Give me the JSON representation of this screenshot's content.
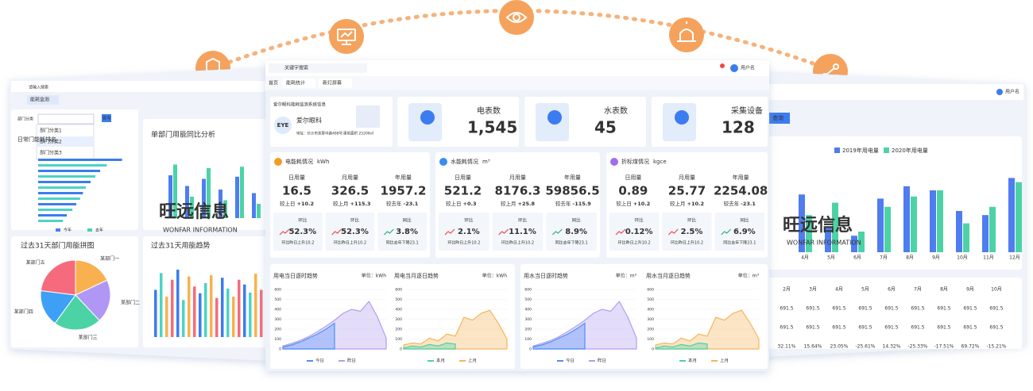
{
  "watermark": {
    "title": "旺远信息",
    "subtitle": "WONFAR INFORMATION"
  },
  "left_panel": {
    "search": "请输入搜索",
    "tab": "能耗监测",
    "button": "查询",
    "filter_label": "部门分类",
    "filters": [
      "部门分类1",
      "部门分类2",
      "部门分类3"
    ],
    "rank_title": "日常门能耗排名",
    "rank_values": [
      88,
      72,
      65,
      60,
      55,
      50,
      47,
      44,
      40,
      36,
      30,
      26
    ],
    "compare_title": "单部门用能同比分析",
    "compare_series": [
      {
        "name": "今年",
        "color": "#4f7cf0",
        "values": [
          60,
          45,
          55,
          40,
          58,
          35
        ]
      },
      {
        "name": "去年",
        "color": "#4cd3a5",
        "values": [
          75,
          30,
          70,
          25,
          72,
          20
        ]
      }
    ],
    "pie_title": "过去31天部门用能拼图",
    "pie": {
      "labels": [
        "某部门一",
        "某部门二",
        "某部门三",
        "某部门四",
        "某部门五"
      ],
      "values": [
        18,
        20,
        22,
        17,
        23
      ],
      "colors": [
        "#f9b14f",
        "#b197f5",
        "#4cd3a5",
        "#3ea0f5",
        "#f56b7d"
      ]
    },
    "trend_title": "过去31天用能趋势",
    "trend_values": [
      70,
      95,
      60,
      85,
      100,
      55,
      90,
      75,
      65,
      80,
      92,
      58,
      88,
      72,
      60,
      85,
      78,
      66,
      94,
      70
    ]
  },
  "main": {
    "search": "关键字搜索",
    "user": "用户名",
    "tabs": [
      "首页",
      "能耗统计",
      "新灯屏幕"
    ],
    "info": {
      "heading": "爱尔眼科能耗监测系统信息",
      "logo": "EYE",
      "name": "爱尔眼科",
      "address": "地址：长沙市芙蓉中路488号",
      "area": "建筑面积 25208㎡"
    },
    "counters": [
      {
        "label": "电表数",
        "value": "1,545"
      },
      {
        "label": "水表数",
        "value": "45"
      },
      {
        "label": "采集设备",
        "value": "128"
      }
    ],
    "energy": [
      {
        "title": "电能耗情况",
        "unit": "kWh",
        "icon_color": "#f39c23",
        "stats": [
          {
            "label": "日用量",
            "value": "16.5",
            "compare": "较上日",
            "change": "+10.2",
            "color": "#f04848"
          },
          {
            "label": "月用量",
            "value": "326.5",
            "compare": "较上月",
            "change": "+115.3",
            "color": "#f04848"
          },
          {
            "label": "年用量",
            "value": "1957.2",
            "compare": "较去年",
            "change": "-23.1",
            "color": "#28b07a"
          }
        ],
        "ratios": [
          {
            "label": "环比",
            "value": "52.3%",
            "desc": "环比昨日上升10.2",
            "color": "#f04848"
          },
          {
            "label": "环比",
            "value": "52.3%",
            "desc": "环比昨日上升10.2",
            "color": "#f04848"
          },
          {
            "label": "同比",
            "value": "3.8%",
            "desc": "同比去年下降23.1",
            "color": "#28b07a"
          }
        ]
      },
      {
        "title": "水能耗情况",
        "unit": "m³",
        "icon_color": "#3b8cf0",
        "stats": [
          {
            "label": "日用量",
            "value": "521.2",
            "compare": "较上日",
            "change": "+0.3",
            "color": "#f04848"
          },
          {
            "label": "月用量",
            "value": "8176.3",
            "compare": "较上月",
            "change": "+25.8",
            "color": "#f04848"
          },
          {
            "label": "年用量",
            "value": "59856.5",
            "compare": "较去年",
            "change": "-115.9",
            "color": "#28b07a"
          }
        ],
        "ratios": [
          {
            "label": "环比",
            "value": "2.1%",
            "desc": "环比昨日上升10.2",
            "color": "#f04848"
          },
          {
            "label": "环比",
            "value": "11.1%",
            "desc": "环比昨日上升10.2",
            "color": "#f04848"
          },
          {
            "label": "同比",
            "value": "8.9%",
            "desc": "同比去年下降23.1",
            "color": "#28b07a"
          }
        ]
      },
      {
        "title": "折标煤情况",
        "unit": "kgce",
        "icon_color": "#a26cf0",
        "stats": [
          {
            "label": "日用量",
            "value": "0.89",
            "compare": "较上日",
            "change": "+10.2",
            "color": "#f04848"
          },
          {
            "label": "月用量",
            "value": "25.77",
            "compare": "较上月",
            "change": "+10.2",
            "color": "#f04848"
          },
          {
            "label": "年用量",
            "value": "2254.08",
            "compare": "较去年",
            "change": "-23.1",
            "color": "#28b07a"
          }
        ],
        "ratios": [
          {
            "label": "环比",
            "value": "0.12%",
            "desc": "环比昨日上升10.2",
            "color": "#f04848"
          },
          {
            "label": "环比",
            "value": "2.5%",
            "desc": "环比昨日上升10.2",
            "color": "#f04848"
          },
          {
            "label": "同比",
            "value": "6.9%",
            "desc": "同比去年下降23.1",
            "color": "#28b07a"
          }
        ]
      }
    ],
    "trends": [
      {
        "title": "用电当日逐时趋势",
        "unit": "单位：kWh",
        "ylim": [
          0,
          600
        ],
        "yticks": [
          0,
          100,
          200,
          300,
          400,
          500,
          600
        ],
        "series": [
          {
            "name": "今日",
            "color": "#4f8ff5",
            "values": [
              20,
              40,
              70,
              110,
              150,
              200,
              260,
              null,
              null,
              null,
              null,
              null,
              null
            ]
          },
          {
            "name": "昨日",
            "color": "#b39df0",
            "values": [
              30,
              55,
              85,
              125,
              175,
              230,
              290,
              360,
              400,
              380,
              480,
              320,
              110
            ]
          }
        ]
      },
      {
        "title": "用电当月逐日趋势",
        "unit": "单位：kWh",
        "ylim": [
          0,
          600
        ],
        "yticks": [
          0,
          100,
          200,
          300,
          400,
          500,
          600
        ],
        "series": [
          {
            "name": "本月",
            "color": "#4cd3a5",
            "values": [
              10,
              30,
              20,
              45,
              30,
              60,
              50,
              null,
              null,
              null,
              null,
              null,
              null
            ]
          },
          {
            "name": "上月",
            "color": "#f6b55a",
            "values": [
              40,
              60,
              50,
              110,
              80,
              150,
              130,
              320,
              290,
              360,
              390,
              260,
              100
            ]
          }
        ]
      },
      {
        "title": "用水当日逐时趋势",
        "unit": "单位：m³",
        "ylim": [
          0,
          600
        ],
        "yticks": [
          0,
          100,
          200,
          300,
          400,
          500,
          600
        ],
        "series": [
          {
            "name": "今日",
            "color": "#4f8ff5",
            "values": [
              20,
              40,
              70,
              110,
              150,
              200,
              260,
              null,
              null,
              null,
              null,
              null,
              null
            ]
          },
          {
            "name": "昨日",
            "color": "#b39df0",
            "values": [
              30,
              55,
              85,
              125,
              175,
              230,
              290,
              360,
              400,
              380,
              480,
              320,
              110
            ]
          }
        ]
      },
      {
        "title": "用水当月逐日趋势",
        "unit": "单位：m³",
        "ylim": [
          0,
          600
        ],
        "yticks": [
          0,
          100,
          200,
          300,
          400,
          500,
          600
        ],
        "series": [
          {
            "name": "本月",
            "color": "#4cd3a5",
            "values": [
              10,
              30,
              20,
              45,
              30,
              60,
              50,
              null,
              null,
              null,
              null,
              null,
              null
            ]
          },
          {
            "name": "上月",
            "color": "#f6b55a",
            "values": [
              40,
              60,
              50,
              110,
              80,
              150,
              130,
              320,
              290,
              360,
              390,
              260,
              100
            ]
          }
        ]
      }
    ]
  },
  "right_panel": {
    "user": "用户名",
    "button": "查询",
    "months": [
      "4月",
      "5月",
      "6月",
      "7月",
      "8月",
      "9月",
      "10月",
      "11月",
      "12月"
    ],
    "series": [
      {
        "name": "2019年用电量",
        "color": "#4f7cf0",
        "values": [
          28,
          12,
          8,
          26,
          32,
          30,
          20,
          18,
          36
        ]
      },
      {
        "name": "2020年用电量",
        "color": "#4cd3a5",
        "values": [
          18,
          24,
          10,
          22,
          27,
          30,
          14,
          22,
          34
        ]
      }
    ],
    "table": [
      [
        "2月",
        "3月",
        "4月",
        "5月",
        "6月",
        "7月",
        "8月",
        "9月",
        "10月"
      ],
      [
        "691.5",
        "691.5",
        "691.5",
        "691.5",
        "691.5",
        "691.5",
        "691.5",
        "691.5",
        "691.5"
      ],
      [
        "691.5",
        "691.5",
        "691.5",
        "691.5",
        "691.5",
        "691.5",
        "691.5",
        "691.5",
        "691.5"
      ],
      [
        "32.11%",
        "15.64%",
        "23.05%",
        "-25.61%",
        "14.32%",
        "-25.33%",
        "-17.51%",
        "69.72%",
        "-15.21%"
      ]
    ]
  }
}
